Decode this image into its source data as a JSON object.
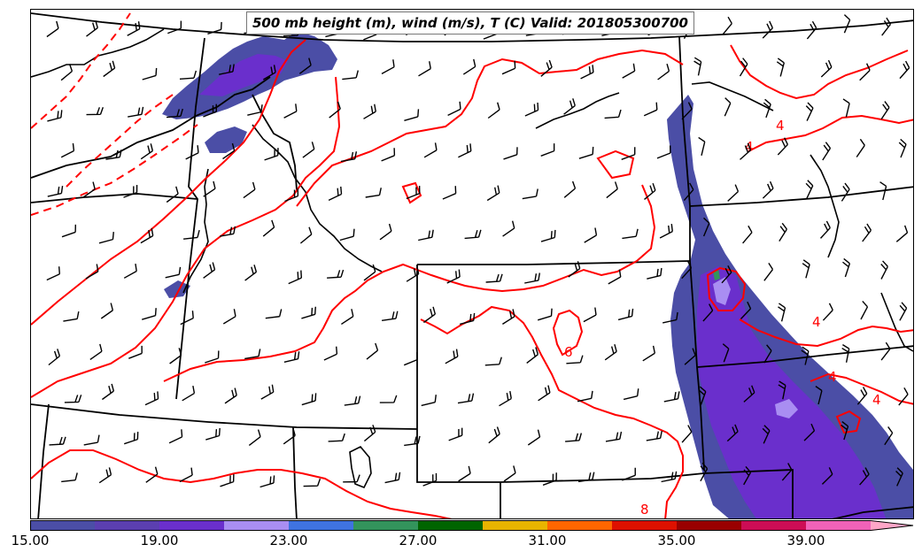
{
  "title": "500 mb height (m), wind (m/s), T (C) Valid: 201805300700",
  "colorbar": {
    "colors": [
      "#4b4ea6",
      "#5b3fb0",
      "#6a2fcc",
      "#a98ef2",
      "#3f73e0",
      "#33945c",
      "#006400",
      "#e8b400",
      "#ff6600",
      "#dd1100",
      "#990000",
      "#cc0d55",
      "#f062b8",
      "#ffa6c8"
    ],
    "labels": [
      "15.00",
      "19.00",
      "23.00",
      "27.00",
      "31.00",
      "35.00",
      "39.00"
    ]
  },
  "contour_labels": [
    "4",
    "4",
    "4",
    "4",
    "4",
    "6",
    "8"
  ],
  "colors": {
    "temperature_contour": "#ff0000",
    "borders": "#000000",
    "wind_barbs": "#000000"
  }
}
